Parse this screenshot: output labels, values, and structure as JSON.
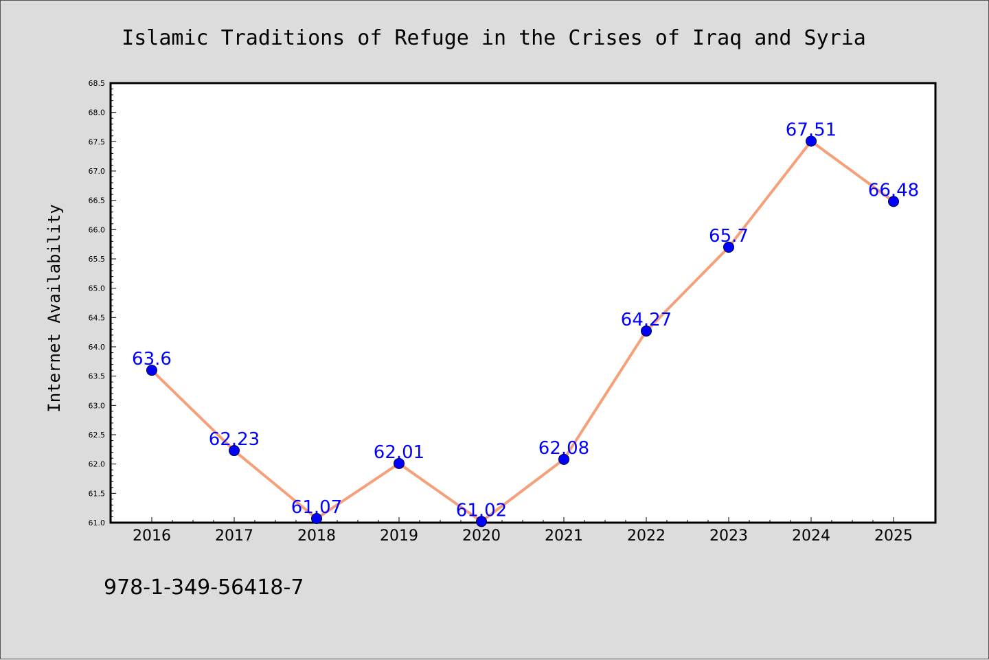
{
  "chart_data": {
    "type": "line",
    "title": "Islamic Traditions of Refuge in the Crises of Iraq and Syria",
    "xlabel": "",
    "ylabel": "Internet Availability",
    "categories": [
      "2016",
      "2017",
      "2018",
      "2019",
      "2020",
      "2021",
      "2022",
      "2023",
      "2024",
      "2025"
    ],
    "series": [
      {
        "values": [
          63.6,
          62.23,
          61.07,
          62.01,
          61.02,
          62.08,
          64.27,
          65.7,
          67.51,
          66.48
        ],
        "data_labels": [
          "63.6",
          "62.23",
          "61.07",
          "62.01",
          "61.02",
          "62.08",
          "64.27",
          "65.7",
          "67.51",
          "66.48"
        ],
        "line_color": "#f5a07a",
        "marker_color": "#0000ff"
      }
    ],
    "ylim": [
      61.0,
      68.5
    ],
    "yticks": [
      "61.0",
      "61.5",
      "62.0",
      "62.5",
      "63.0",
      "63.5",
      "64.0",
      "64.5",
      "65.0",
      "65.5",
      "66.0",
      "66.5",
      "67.0",
      "67.5",
      "68.0",
      "68.5"
    ],
    "grid": false,
    "legend": "none",
    "label_color": "#0000ff"
  },
  "footer_text": "978-1-349-56418-7"
}
